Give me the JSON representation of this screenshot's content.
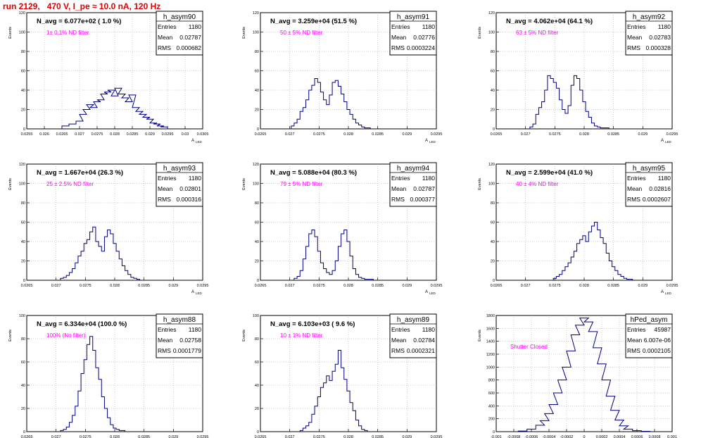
{
  "page": {
    "title": "run 2129,   470 V, I_pe ≈ 10.0 nA, 120 Hz"
  },
  "common": {
    "y_axis_label": "Events",
    "x_axis_label": "A",
    "x_axis_sub": "LED",
    "stat_entries_label": "Entries",
    "stat_mean_label": "Mean",
    "stat_rms_label": "RMS"
  },
  "colors": {
    "hist": "#000080",
    "annotation": "#ff00ff",
    "title": "#e00000",
    "grid": "#9a9a9a"
  },
  "chart_data": [
    {
      "type": "histogram",
      "name": "h_asym90",
      "summary": "N_avg = 6.077e+02 ( 1.0 %)",
      "annotation": "1± 0.1% ND filter",
      "entries": "1180",
      "mean": "0.02787",
      "rms": "0.000682",
      "xlim": [
        0.0255,
        0.0305
      ],
      "ylim": [
        0,
        120
      ],
      "xticks": [
        "0.0255",
        "0.026",
        "0.0265",
        "0.027",
        "0.0275",
        "0.028",
        "0.0285",
        "0.029",
        "0.0295",
        "0.03",
        "0.0305"
      ],
      "yticks": [
        "0",
        "20",
        "40",
        "60",
        "80",
        "100",
        "120"
      ],
      "grid": true,
      "x": [
        0.0266,
        0.0268,
        0.027,
        0.0271,
        0.0272,
        0.0273,
        0.0274,
        0.0275,
        0.0276,
        0.0277,
        0.0278,
        0.0279,
        0.028,
        0.0281,
        0.0282,
        0.0283,
        0.0284,
        0.0285,
        0.0286,
        0.0287,
        0.0288,
        0.0289,
        0.029,
        0.0291,
        0.0292,
        0.0293,
        0.0294
      ],
      "y": [
        3,
        5,
        8,
        15,
        20,
        25,
        22,
        28,
        30,
        36,
        38,
        40,
        34,
        42,
        36,
        32,
        28,
        35,
        22,
        18,
        15,
        12,
        10,
        6,
        5,
        3,
        2
      ]
    },
    {
      "type": "histogram",
      "name": "h_asym91",
      "summary": "N_avg = 3.259e+04 (51.5 %)",
      "annotation": "50 ± 5% ND filter",
      "entries": "1180",
      "mean": "0.02776",
      "rms": "0.0003224",
      "xlim": [
        0.0265,
        0.0295
      ],
      "ylim": [
        0,
        120
      ],
      "xticks": [
        "0.0265",
        "0.027",
        "0.0275",
        "0.028",
        "0.0285",
        "0.029",
        "0.0295"
      ],
      "yticks": [
        "0",
        "20",
        "40",
        "60",
        "80",
        "100",
        "120"
      ],
      "grid": true,
      "x": [
        0.02705,
        0.0271,
        0.02715,
        0.0272,
        0.02725,
        0.0273,
        0.02735,
        0.0274,
        0.02745,
        0.0275,
        0.02755,
        0.0276,
        0.02765,
        0.0277,
        0.02775,
        0.0278,
        0.02785,
        0.0279,
        0.02795,
        0.028,
        0.02805,
        0.0281,
        0.02815,
        0.0282,
        0.02825,
        0.0283,
        0.02835
      ],
      "y": [
        3,
        6,
        10,
        18,
        22,
        30,
        40,
        45,
        52,
        48,
        38,
        30,
        25,
        35,
        48,
        50,
        44,
        36,
        28,
        20,
        15,
        10,
        6,
        4,
        2,
        1,
        1
      ]
    },
    {
      "type": "histogram",
      "name": "h_asym92",
      "summary": "N_avg = 4.062e+04 (64.1 %)",
      "annotation": "63 ± 5% ND filter",
      "entries": "1180",
      "mean": "0.02783",
      "rms": "0.000328",
      "xlim": [
        0.0265,
        0.0295
      ],
      "ylim": [
        0,
        120
      ],
      "xticks": [
        "0.0265",
        "0.027",
        "0.0275",
        "0.028",
        "0.0285",
        "0.029",
        "0.0295"
      ],
      "yticks": [
        "0",
        "20",
        "40",
        "60",
        "80",
        "100",
        "120"
      ],
      "grid": true,
      "x": [
        0.0271,
        0.02715,
        0.0272,
        0.02725,
        0.0273,
        0.02735,
        0.0274,
        0.02745,
        0.0275,
        0.02755,
        0.0276,
        0.02765,
        0.0277,
        0.02775,
        0.0278,
        0.02785,
        0.0279,
        0.02795,
        0.028,
        0.02805,
        0.0281,
        0.02815,
        0.0282,
        0.02825,
        0.0283,
        0.02835,
        0.0284
      ],
      "y": [
        2,
        5,
        15,
        22,
        28,
        40,
        55,
        52,
        48,
        42,
        30,
        20,
        16,
        24,
        45,
        55,
        52,
        40,
        28,
        18,
        12,
        6,
        3,
        2,
        1,
        1,
        1
      ]
    },
    {
      "type": "histogram",
      "name": "h_asym93",
      "summary": "N_avg = 1.667e+04 (26.3 %)",
      "annotation": "25 ± 2.5% ND filter",
      "entries": "1180",
      "mean": "0.02801",
      "rms": "0.000316",
      "xlim": [
        0.0265,
        0.0295
      ],
      "ylim": [
        0,
        120
      ],
      "xticks": [
        "0.0265",
        "0.027",
        "0.0275",
        "0.028",
        "0.0285",
        "0.029",
        "0.0295"
      ],
      "yticks": [
        "0",
        "20",
        "40",
        "60",
        "80",
        "100",
        "120"
      ],
      "grid": true,
      "x": [
        0.0271,
        0.02715,
        0.0272,
        0.02725,
        0.0273,
        0.02735,
        0.0274,
        0.02745,
        0.0275,
        0.02755,
        0.0276,
        0.02765,
        0.0277,
        0.02775,
        0.0278,
        0.02785,
        0.0279,
        0.02795,
        0.028,
        0.02805,
        0.0281,
        0.02815,
        0.0282,
        0.02825,
        0.0283,
        0.02835,
        0.0284
      ],
      "y": [
        2,
        3,
        5,
        8,
        12,
        18,
        25,
        30,
        38,
        42,
        50,
        55,
        40,
        35,
        30,
        45,
        52,
        48,
        38,
        30,
        22,
        15,
        10,
        6,
        3,
        2,
        1
      ]
    },
    {
      "type": "histogram",
      "name": "h_asym94",
      "summary": "N_avg = 5.088e+04 (80.3 %)",
      "annotation": "79 ± 5% ND filter",
      "entries": "1180",
      "mean": "0.02787",
      "rms": "0.000377",
      "xlim": [
        0.0265,
        0.0295
      ],
      "ylim": [
        0,
        120
      ],
      "xticks": [
        "0.0265",
        "0.027",
        "0.0275",
        "0.028",
        "0.0285",
        "0.029",
        "0.0295"
      ],
      "yticks": [
        "0",
        "20",
        "40",
        "60",
        "80",
        "100",
        "120"
      ],
      "grid": true,
      "x": [
        0.0271,
        0.02715,
        0.0272,
        0.02725,
        0.0273,
        0.02735,
        0.0274,
        0.02745,
        0.0275,
        0.02755,
        0.0276,
        0.02765,
        0.0277,
        0.02775,
        0.0278,
        0.02785,
        0.0279,
        0.02795,
        0.028,
        0.02805,
        0.0281,
        0.02815,
        0.0282,
        0.02825,
        0.0283,
        0.02835,
        0.0284
      ],
      "y": [
        2,
        4,
        10,
        22,
        35,
        48,
        52,
        45,
        30,
        18,
        12,
        8,
        6,
        10,
        20,
        35,
        48,
        52,
        40,
        25,
        12,
        6,
        3,
        2,
        1,
        1,
        1
      ]
    },
    {
      "type": "histogram",
      "name": "h_asym95",
      "summary": "N_avg = 2.599e+04 (41.0 %)",
      "annotation": "40 ± 4% ND filter",
      "entries": "1180",
      "mean": "0.02816",
      "rms": "0.0002607",
      "xlim": [
        0.0265,
        0.0295
      ],
      "ylim": [
        0,
        120
      ],
      "xticks": [
        "0.0265",
        "0.027",
        "0.0275",
        "0.028",
        "0.0285",
        "0.029",
        "0.0295"
      ],
      "yticks": [
        "0",
        "20",
        "40",
        "60",
        "80",
        "100",
        "120"
      ],
      "grid": true,
      "x": [
        0.0275,
        0.02755,
        0.0276,
        0.02765,
        0.0277,
        0.02775,
        0.0278,
        0.02785,
        0.0279,
        0.02795,
        0.028,
        0.02805,
        0.0281,
        0.02815,
        0.0282,
        0.02825,
        0.0283,
        0.02835,
        0.0284,
        0.02845,
        0.0285,
        0.02855,
        0.0286,
        0.02865,
        0.0287,
        0.02875,
        0.0288
      ],
      "y": [
        2,
        4,
        6,
        10,
        14,
        18,
        24,
        30,
        38,
        42,
        46,
        40,
        50,
        56,
        60,
        52,
        44,
        38,
        28,
        20,
        14,
        10,
        6,
        4,
        2,
        1,
        1
      ]
    },
    {
      "type": "histogram",
      "name": "h_asym88",
      "summary": "N_avg = 6.334e+04 (100.0 %)",
      "annotation": "100% (No filter)",
      "entries": "1180",
      "mean": "0.02758",
      "rms": "0.0001779",
      "xlim": [
        0.0265,
        0.0295
      ],
      "ylim": [
        0,
        100
      ],
      "xticks": [
        "0.0265",
        "0.027",
        "0.0275",
        "0.028",
        "0.0285",
        "0.029",
        "0.0295"
      ],
      "yticks": [
        "0",
        "20",
        "40",
        "60",
        "80",
        "100"
      ],
      "grid": true,
      "x": [
        0.0271,
        0.02715,
        0.0272,
        0.02725,
        0.0273,
        0.02735,
        0.0274,
        0.02745,
        0.0275,
        0.02755,
        0.0276,
        0.02765,
        0.0277,
        0.02775,
        0.0278,
        0.02785,
        0.0279,
        0.02795,
        0.028,
        0.02805,
        0.0281,
        0.02815
      ],
      "y": [
        1,
        2,
        4,
        8,
        14,
        22,
        35,
        50,
        62,
        75,
        82,
        70,
        55,
        45,
        30,
        20,
        12,
        6,
        3,
        2,
        1,
        1
      ]
    },
    {
      "type": "histogram",
      "name": "h_asym89",
      "summary": "N_avg = 6.103e+03 ( 9.6 %)",
      "annotation": "10 ± 1% ND filter",
      "entries": "1180",
      "mean": "0.02784",
      "rms": "0.0002321",
      "xlim": [
        0.0265,
        0.0295
      ],
      "ylim": [
        0,
        100
      ],
      "xticks": [
        "0.0265",
        "0.027",
        "0.0275",
        "0.028",
        "0.0285",
        "0.029",
        "0.0295"
      ],
      "yticks": [
        "0",
        "20",
        "40",
        "60",
        "80",
        "100"
      ],
      "grid": true,
      "x": [
        0.0272,
        0.02725,
        0.0273,
        0.02735,
        0.0274,
        0.02745,
        0.0275,
        0.02755,
        0.0276,
        0.02765,
        0.0277,
        0.02775,
        0.0278,
        0.02785,
        0.0279,
        0.02795,
        0.028,
        0.02805,
        0.0281,
        0.02815,
        0.0282,
        0.02825,
        0.0283
      ],
      "y": [
        1,
        3,
        5,
        8,
        15,
        22,
        30,
        38,
        42,
        48,
        44,
        52,
        58,
        70,
        55,
        45,
        35,
        25,
        18,
        10,
        5,
        2,
        1
      ]
    },
    {
      "type": "histogram",
      "name": "hPed_asym",
      "summary": "",
      "annotation": "Shutter Closed",
      "entries": "45987",
      "mean": "6.007e-06",
      "rms": "0.0002105",
      "xlim": [
        -0.001,
        0.001
      ],
      "ylim": [
        0,
        1800
      ],
      "xticks": [
        "-0.001",
        "-0.0008",
        "-0.0006",
        "-0.0004",
        "-0.0002",
        "0",
        "0.0002",
        "0.0004",
        "0.0006",
        "0.0008",
        "0.001"
      ],
      "yticks": [
        "0",
        "200",
        "400",
        "600",
        "800",
        "1000",
        "1200",
        "1400",
        "1600",
        "1800"
      ],
      "grid": true,
      "x": [
        -0.0007,
        -0.0006,
        -0.0005,
        -0.00045,
        -0.0004,
        -0.00035,
        -0.0003,
        -0.00025,
        -0.0002,
        -0.00015,
        -0.0001,
        -5e-05,
        0,
        5e-05,
        0.0001,
        0.00015,
        0.0002,
        0.00025,
        0.0003,
        0.00035,
        0.0004,
        0.00045,
        0.0005,
        0.0006,
        0.0007
      ],
      "y": [
        10,
        40,
        100,
        170,
        280,
        420,
        600,
        800,
        1000,
        1250,
        1500,
        1650,
        1760,
        1700,
        1550,
        1300,
        1050,
        800,
        550,
        330,
        180,
        90,
        40,
        15,
        5
      ]
    }
  ]
}
